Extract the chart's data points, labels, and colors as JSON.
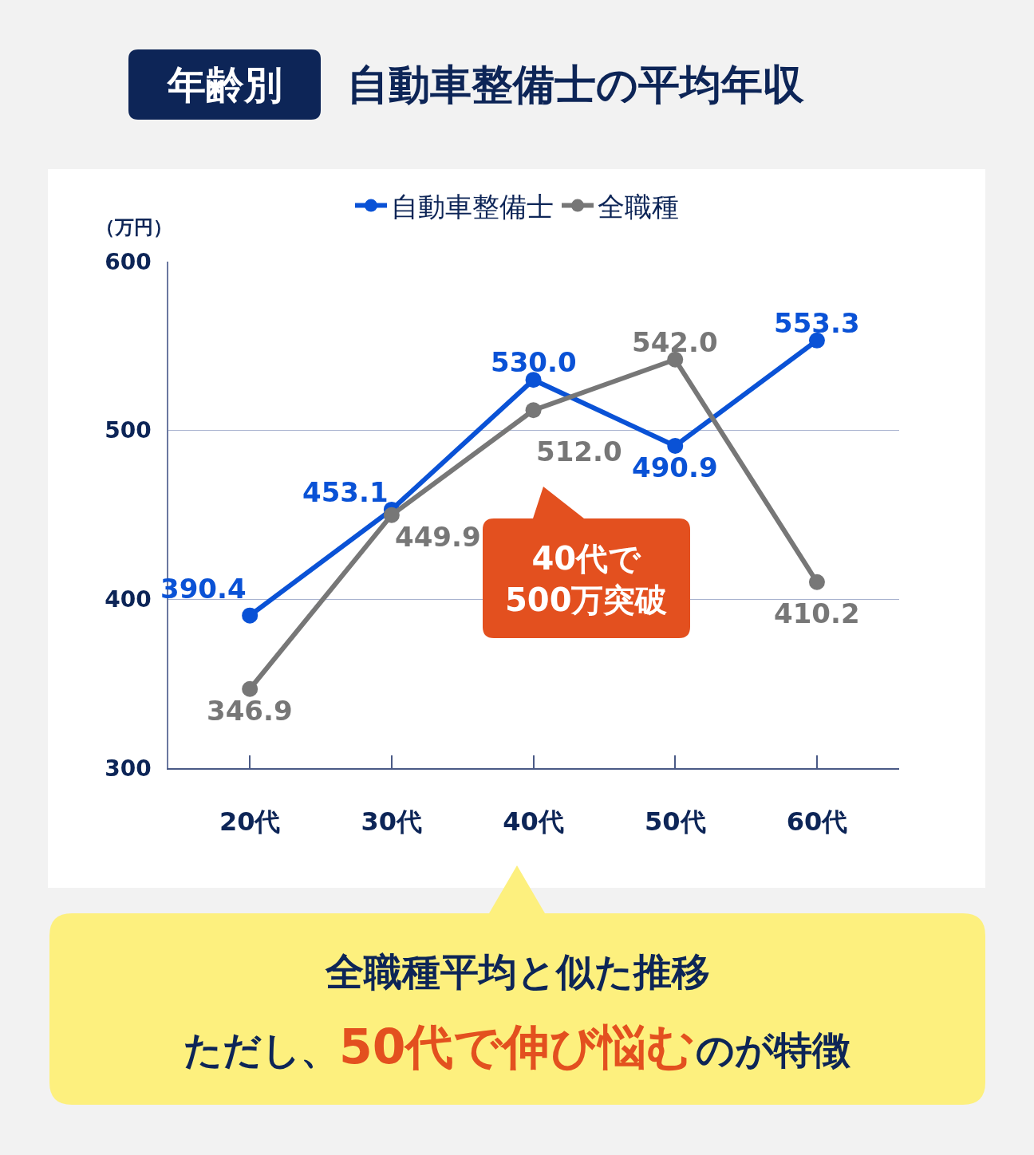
{
  "chart_data": {
    "type": "line",
    "title": "自動車整備士の平均年収",
    "ylabel": "（万円）",
    "categories": [
      "20代",
      "30代",
      "40代",
      "50代",
      "60代"
    ],
    "series": [
      {
        "name": "自動車整備士",
        "color": "#0a52d6",
        "values": [
          390.4,
          453.1,
          530.0,
          490.9,
          553.3
        ],
        "value_labels": [
          "390.4",
          "453.1",
          "530.0",
          "490.9",
          "553.3"
        ]
      },
      {
        "name": "全職種",
        "color": "#777777",
        "values": [
          346.9,
          449.9,
          512.0,
          542.0,
          410.2
        ],
        "value_labels": [
          "346.9",
          "449.9",
          "512.0",
          "542.0",
          "410.2"
        ]
      }
    ],
    "ylim": [
      300,
      600
    ],
    "yticks": [
      300,
      400,
      500,
      600
    ],
    "grid": "y",
    "legend": "top",
    "marker": "circle",
    "line_style": "solid",
    "annotations": [
      "年齢別",
      "40代で\n500万突破",
      "全職種平均と似た推移",
      "ただし、",
      "50代で伸び悩む",
      "のが特徴"
    ]
  }
}
